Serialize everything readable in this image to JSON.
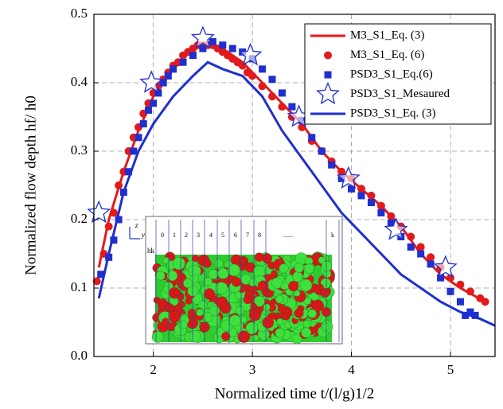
{
  "chart_data": {
    "type": "line",
    "x_label": "Normalized time t/(l/g)1/2",
    "y_label": "Normalized flow depth hf/ h0",
    "xlim": [
      1.4,
      5.45
    ],
    "ylim": [
      0,
      0.5
    ],
    "xticks": [
      2,
      3,
      4,
      5
    ],
    "yticks": [
      {
        "value": 0,
        "label": "0.0"
      },
      0.1,
      0.2,
      0.3,
      0.4,
      0.5
    ],
    "grid": true,
    "legend": "top-right",
    "series": [
      {
        "name": "M3_S1_Eq. (3)",
        "color": "#e31a1c",
        "style": "line",
        "x": [
          1.45,
          1.55,
          1.7,
          1.85,
          2.0,
          2.2,
          2.4,
          2.55,
          2.7,
          2.9,
          3.1,
          3.3,
          3.5,
          3.7,
          3.9,
          4.1,
          4.3,
          4.5,
          4.7,
          4.9,
          5.1,
          5.35
        ],
        "values": [
          0.13,
          0.2,
          0.27,
          0.33,
          0.38,
          0.42,
          0.45,
          0.455,
          0.45,
          0.43,
          0.4,
          0.37,
          0.34,
          0.3,
          0.27,
          0.245,
          0.22,
          0.19,
          0.15,
          0.12,
          0.1,
          0.08
        ]
      },
      {
        "name": "M3_S1_Eq. (6)",
        "color": "#e31a1c",
        "style": "marker",
        "marker": "circle",
        "x": [
          1.43,
          1.5,
          1.55,
          1.6,
          1.65,
          1.7,
          1.75,
          1.8,
          1.85,
          1.9,
          1.95,
          2.0,
          2.05,
          2.1,
          2.15,
          2.2,
          2.25,
          2.3,
          2.35,
          2.4,
          2.45,
          2.5,
          2.55,
          2.6,
          2.65,
          2.7,
          2.75,
          2.8,
          2.85,
          2.9,
          2.95,
          3.0,
          3.1,
          3.2,
          3.3,
          3.4,
          3.5,
          3.6,
          3.7,
          3.8,
          3.9,
          4.0,
          4.1,
          4.2,
          4.3,
          4.4,
          4.5,
          4.6,
          4.7,
          4.8,
          4.9,
          5.0,
          5.1,
          5.2,
          5.3,
          5.35
        ],
        "values": [
          0.11,
          0.15,
          0.19,
          0.21,
          0.25,
          0.27,
          0.3,
          0.32,
          0.335,
          0.355,
          0.37,
          0.385,
          0.395,
          0.405,
          0.415,
          0.425,
          0.43,
          0.44,
          0.445,
          0.45,
          0.455,
          0.455,
          0.455,
          0.455,
          0.45,
          0.445,
          0.44,
          0.435,
          0.43,
          0.425,
          0.415,
          0.41,
          0.395,
          0.38,
          0.365,
          0.35,
          0.335,
          0.315,
          0.3,
          0.285,
          0.27,
          0.26,
          0.245,
          0.235,
          0.22,
          0.205,
          0.19,
          0.175,
          0.16,
          0.145,
          0.13,
          0.115,
          0.105,
          0.095,
          0.085,
          0.08
        ]
      },
      {
        "name": "PSD3_S1_Eq.(6)",
        "color": "#1f2fd0",
        "style": "marker",
        "marker": "square",
        "x": [
          1.47,
          1.55,
          1.6,
          1.65,
          1.7,
          1.75,
          1.8,
          1.85,
          1.9,
          1.95,
          2.0,
          2.05,
          2.1,
          2.15,
          2.2,
          2.3,
          2.4,
          2.5,
          2.6,
          2.7,
          2.8,
          2.9,
          3.0,
          3.1,
          3.2,
          3.3,
          3.4,
          3.5,
          3.6,
          3.7,
          3.8,
          3.9,
          4.0,
          4.1,
          4.2,
          4.3,
          4.4,
          4.5,
          4.6,
          4.7,
          4.8,
          4.9,
          5.0,
          5.1,
          5.15,
          5.2,
          5.25
        ],
        "values": [
          0.12,
          0.145,
          0.17,
          0.2,
          0.24,
          0.27,
          0.3,
          0.32,
          0.34,
          0.36,
          0.37,
          0.385,
          0.4,
          0.41,
          0.42,
          0.43,
          0.44,
          0.45,
          0.46,
          0.455,
          0.45,
          0.445,
          0.435,
          0.42,
          0.405,
          0.385,
          0.365,
          0.345,
          0.32,
          0.3,
          0.28,
          0.26,
          0.245,
          0.235,
          0.225,
          0.21,
          0.195,
          0.175,
          0.16,
          0.15,
          0.135,
          0.115,
          0.095,
          0.08,
          0.06,
          0.065,
          0.06
        ]
      },
      {
        "name": "PSD3_S1_Mesaured",
        "color": "#1f2fd0",
        "style": "marker",
        "marker": "star",
        "x": [
          1.45,
          1.98,
          2.5,
          2.98,
          3.47,
          3.97,
          4.45,
          4.95
        ],
        "values": [
          0.21,
          0.4,
          0.465,
          0.44,
          0.35,
          0.26,
          0.185,
          0.13
        ]
      },
      {
        "name": "PSD3_S1_Eq. (3)",
        "color": "#1f2fd0",
        "style": "line",
        "x": [
          1.45,
          1.55,
          1.7,
          1.85,
          2.0,
          2.2,
          2.4,
          2.55,
          2.7,
          2.9,
          3.1,
          3.3,
          3.5,
          3.7,
          3.9,
          4.1,
          4.3,
          4.5,
          4.7,
          4.9,
          5.1,
          5.3,
          5.45
        ],
        "values": [
          0.085,
          0.15,
          0.24,
          0.3,
          0.34,
          0.38,
          0.41,
          0.43,
          0.42,
          0.41,
          0.38,
          0.33,
          0.29,
          0.25,
          0.21,
          0.18,
          0.15,
          0.12,
          0.1,
          0.08,
          0.065,
          0.055,
          0.045
        ]
      }
    ],
    "inset": {
      "axis_z": "z",
      "axis_y": "y",
      "height_label": "hk",
      "columns": [
        "0",
        "1",
        "2",
        "3",
        "4",
        "5",
        "6",
        "7",
        "8",
        "......",
        "k"
      ]
    }
  }
}
